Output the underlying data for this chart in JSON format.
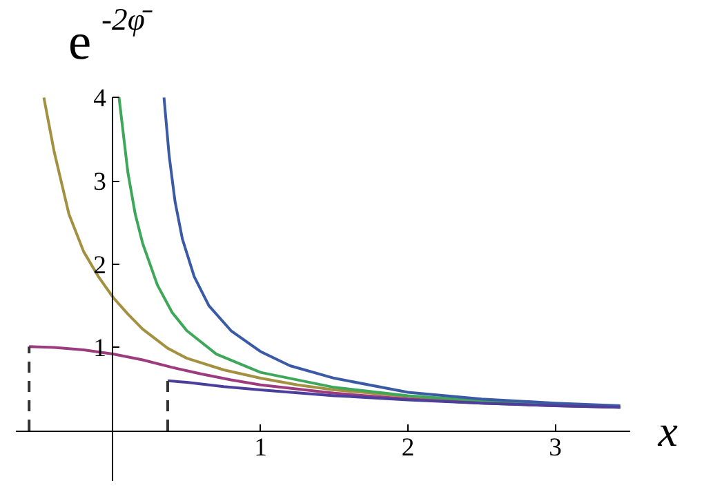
{
  "chart_data": {
    "type": "line",
    "ylabel": "e$^{-2φ̄}$",
    "xlabel": "x",
    "xlim": [
      -0.66,
      3.51
    ],
    "ylim": [
      -0.6,
      4.0
    ],
    "xticks": [
      1,
      2,
      3
    ],
    "yticks": [
      1,
      2,
      3,
      4
    ],
    "grid": false,
    "marker": "none",
    "line_style": "solid",
    "series": [
      {
        "color": "#a39041",
        "x": [
          -0.47,
          -0.4,
          -0.3,
          -0.2,
          -0.1,
          0,
          0.1,
          0.2,
          0.37,
          0.5,
          0.75,
          1,
          1.25,
          1.5,
          2,
          2.5,
          3,
          3.44
        ],
        "values": [
          4.0,
          3.35,
          2.6,
          2.15,
          1.85,
          1.6,
          1.4,
          1.22,
          0.99,
          0.87,
          0.73,
          0.63,
          0.55,
          0.49,
          0.41,
          0.35,
          0.31,
          0.28
        ]
      },
      {
        "color": "#3fa75a",
        "x": [
          0.04,
          0.1,
          0.15,
          0.2,
          0.3,
          0.4,
          0.5,
          0.7,
          1,
          1.5,
          2,
          2.5,
          3,
          3.44
        ],
        "values": [
          4.0,
          3.1,
          2.6,
          2.25,
          1.75,
          1.42,
          1.2,
          0.92,
          0.7,
          0.52,
          0.42,
          0.36,
          0.32,
          0.29
        ]
      },
      {
        "color": "#3b5aa5",
        "x": [
          0.345,
          0.38,
          0.42,
          0.47,
          0.55,
          0.65,
          0.8,
          1,
          1.2,
          1.5,
          2,
          2.5,
          3,
          3.44
        ],
        "values": [
          4.0,
          3.3,
          2.75,
          2.3,
          1.85,
          1.5,
          1.2,
          0.95,
          0.78,
          0.63,
          0.46,
          0.38,
          0.33,
          0.3
        ]
      },
      {
        "color": "#9c3c7e",
        "x": [
          -0.57,
          -0.4,
          -0.2,
          0,
          0.2,
          0.4,
          0.6,
          0.8,
          1,
          1.5,
          2,
          2.5,
          3,
          3.44
        ],
        "values": [
          1.01,
          1.0,
          0.97,
          0.92,
          0.85,
          0.76,
          0.68,
          0.61,
          0.55,
          0.45,
          0.38,
          0.33,
          0.3,
          0.28
        ]
      },
      {
        "color": "#4b3f9c",
        "x": [
          0.37,
          0.5,
          0.75,
          1,
          1.5,
          2,
          2.5,
          3,
          3.44
        ],
        "values": [
          0.6,
          0.58,
          0.53,
          0.49,
          0.42,
          0.37,
          0.33,
          0.3,
          0.28
        ]
      },
      {
        "color": "#333333",
        "line_style": "dashed",
        "x": [
          -0.57,
          -0.57
        ],
        "values": [
          0,
          1.01
        ]
      },
      {
        "color": "#333333",
        "line_style": "dashed",
        "x": [
          0.37,
          0.37
        ],
        "values": [
          0,
          0.6
        ]
      }
    ]
  }
}
